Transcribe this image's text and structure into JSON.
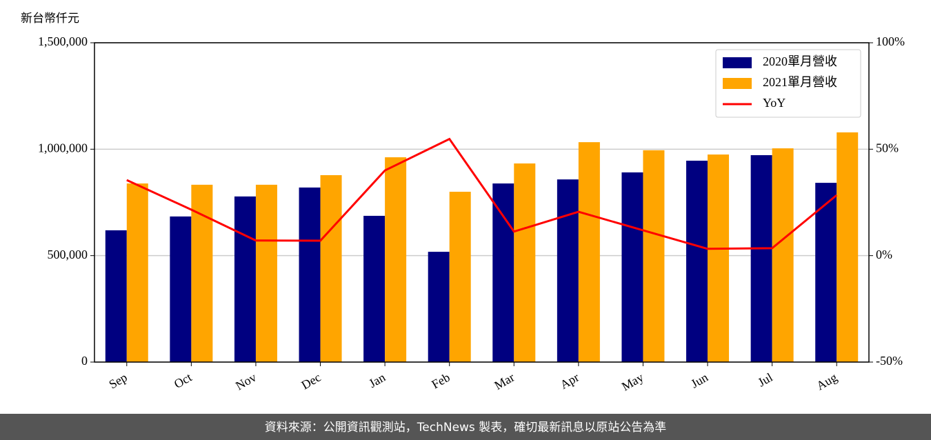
{
  "chart_data": {
    "type": "bar",
    "y_label": "新台幣仟元",
    "categories": [
      "Sep",
      "Oct",
      "Nov",
      "Dec",
      "Jan",
      "Feb",
      "Mar",
      "Apr",
      "May",
      "Jun",
      "Jul",
      "Aug"
    ],
    "series": [
      {
        "name": "2020單月營收",
        "type": "bar",
        "color": "#000080",
        "values": [
          619000,
          684000,
          778000,
          820000,
          687000,
          518000,
          839000,
          858000,
          891000,
          946000,
          972000,
          842000
        ]
      },
      {
        "name": "2021單月營收",
        "type": "bar",
        "color": "#ffa500",
        "values": [
          839000,
          833000,
          833000,
          878000,
          962000,
          800000,
          933000,
          1033000,
          995000,
          975000,
          1004000,
          1079000
        ]
      },
      {
        "name": "YoY",
        "type": "line",
        "axis": "y2",
        "color": "#ff0000",
        "values": [
          35.5,
          21.6,
          7.1,
          7,
          40,
          54.8,
          11.3,
          20.6,
          11.9,
          3.2,
          3.5,
          28.4
        ]
      }
    ],
    "ylim": [
      0,
      1500000
    ],
    "yticks": [
      0,
      {
        "value": 500000,
        "label": "500,000"
      },
      {
        "value": 1000000,
        "label": "1,000,000"
      },
      {
        "value": 1500000,
        "label": "1,500,000"
      }
    ],
    "y2lim": [
      -50,
      100
    ],
    "y2ticks": [
      {
        "value": -50,
        "label": "-50%"
      },
      {
        "value": 0,
        "label": "0%"
      },
      {
        "value": 50,
        "label": "50%"
      },
      {
        "value": 100,
        "label": "100%"
      }
    ],
    "grid": true,
    "legend": "upper right",
    "footer": "資料來源：公開資訊觀測站，TechNews 製表，確切最新訊息以原站公告為準"
  }
}
